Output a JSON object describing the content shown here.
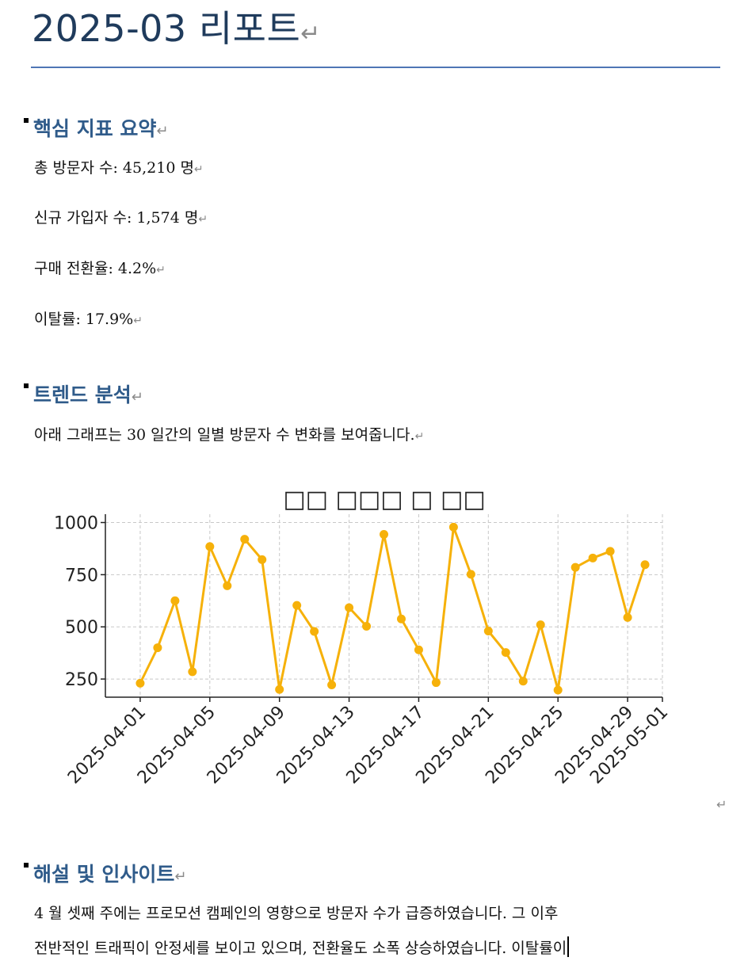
{
  "document": {
    "title": "2025-03 리포트",
    "sections": {
      "summary": {
        "heading": "핵심 지표 요약",
        "items": [
          "총 방문자 수: 45,210 명",
          "신규 가입자 수: 1,574 명",
          "구매 전환율: 4.2%",
          "이탈률: 17.9%"
        ]
      },
      "trend": {
        "heading": "트렌드 분석",
        "intro": "아래 그래프는 30 일간의 일별 방문자 수 변화를 보여줍니다."
      },
      "insight": {
        "heading": "해설 및 인사이트",
        "lines": [
          "4 월 셋째 주에는 프로모션 캠페인의 영향으로 방문자 수가 급증하였습니다. 그 이후",
          "전반적인 트래픽이 안정세를 보이고 있으며, 전환율도 소폭 상승하였습니다. 이탈률이"
        ]
      }
    },
    "marks": {
      "paragraph": "↵"
    }
  },
  "chart_data": {
    "type": "line",
    "title": "□□ □□□ □ □□",
    "xlabel": "",
    "ylabel": "",
    "x": [
      "2025-04-01",
      "2025-04-02",
      "2025-04-03",
      "2025-04-04",
      "2025-04-05",
      "2025-04-06",
      "2025-04-07",
      "2025-04-08",
      "2025-04-09",
      "2025-04-10",
      "2025-04-11",
      "2025-04-12",
      "2025-04-13",
      "2025-04-14",
      "2025-04-15",
      "2025-04-16",
      "2025-04-17",
      "2025-04-18",
      "2025-04-19",
      "2025-04-20",
      "2025-04-21",
      "2025-04-22",
      "2025-04-23",
      "2025-04-24",
      "2025-04-25",
      "2025-04-26",
      "2025-04-27",
      "2025-04-28",
      "2025-04-29",
      "2025-04-30"
    ],
    "values": [
      230,
      400,
      625,
      285,
      885,
      697,
      920,
      822,
      200,
      603,
      478,
      222,
      592,
      503,
      943,
      538,
      390,
      233,
      978,
      752,
      480,
      377,
      240,
      510,
      197,
      785,
      830,
      862,
      545,
      798
    ],
    "xticks": [
      "2025-04-01",
      "2025-04-05",
      "2025-04-09",
      "2025-04-13",
      "2025-04-17",
      "2025-04-21",
      "2025-04-25",
      "2025-04-29",
      "2025-05-01"
    ],
    "yticks": [
      250,
      500,
      750,
      1000
    ],
    "xlim": [
      "2025-03-30",
      "2025-05-01"
    ],
    "ylim": [
      163,
      1040
    ],
    "grid": true,
    "color": "#f6b10a"
  }
}
